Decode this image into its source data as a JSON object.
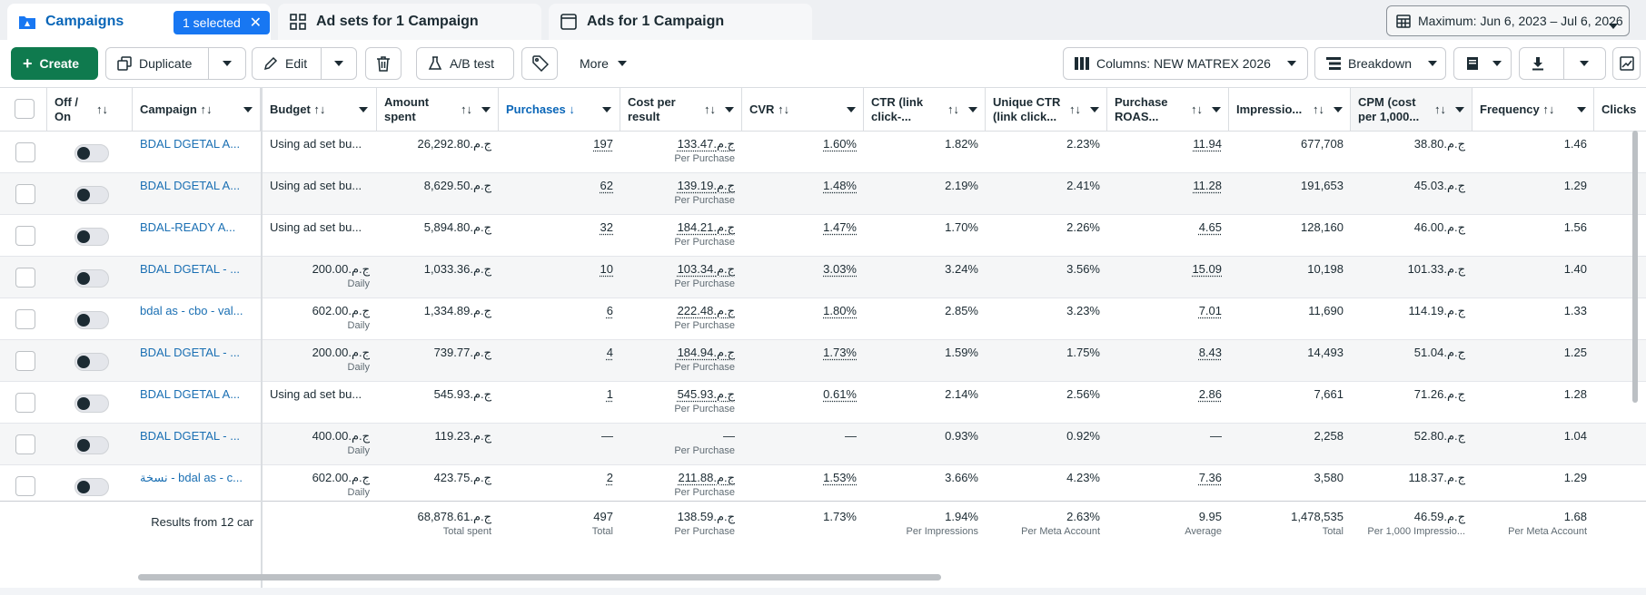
{
  "tabs": {
    "campaigns": "Campaigns",
    "selected_pill": "1 selected",
    "adsets": "Ad sets for 1 Campaign",
    "ads": "Ads for 1 Campaign"
  },
  "date_range": "Maximum: Jun 6, 2023 – Jul 6, 2026",
  "toolbar": {
    "create": "Create",
    "duplicate": "Duplicate",
    "edit": "Edit",
    "ab_test": "A/B test",
    "more": "More",
    "columns": "Columns: NEW MATREX 2026",
    "breakdown": "Breakdown"
  },
  "headers": {
    "off_on": [
      "Off /",
      "On"
    ],
    "campaign": "Campaign",
    "budget": "Budget",
    "amount_spent": [
      "Amount",
      "spent"
    ],
    "purchases": "Purchases",
    "cost_per_result": [
      "Cost per",
      "result"
    ],
    "cvr": "CVR",
    "ctr": [
      "CTR (link",
      "click-..."
    ],
    "unique_ctr": [
      "Unique CTR",
      "(link click..."
    ],
    "purchase_roas": [
      "Purchase",
      "ROAS..."
    ],
    "impressions": "Impressio...",
    "cpm": [
      "CPM (cost",
      "per 1,000..."
    ],
    "frequency": "Frequency",
    "clicks": "Clicks"
  },
  "rows": [
    {
      "campaign": "BDAL DGETAL A...",
      "budget": "Using ad set bu...",
      "budget_sub": "",
      "spent": "26,292.80.ج.م",
      "purchases": "197",
      "cpr": "133.47.ج.م",
      "cpr_sub": "Per Purchase",
      "cvr": "1.60%",
      "ctr": "1.82%",
      "uctr": "2.23%",
      "roas": "11.94",
      "impr": "677,708",
      "cpm": "38.80.ج.م",
      "freq": "1.46"
    },
    {
      "campaign": "BDAL DGETAL A...",
      "budget": "Using ad set bu...",
      "budget_sub": "",
      "spent": "8,629.50.ج.م",
      "purchases": "62",
      "cpr": "139.19.ج.م",
      "cpr_sub": "Per Purchase",
      "cvr": "1.48%",
      "ctr": "2.19%",
      "uctr": "2.41%",
      "roas": "11.28",
      "impr": "191,653",
      "cpm": "45.03.ج.م",
      "freq": "1.29"
    },
    {
      "campaign": "BDAL-READY A...",
      "budget": "Using ad set bu...",
      "budget_sub": "",
      "spent": "5,894.80.ج.م",
      "purchases": "32",
      "cpr": "184.21.ج.م",
      "cpr_sub": "Per Purchase",
      "cvr": "1.47%",
      "ctr": "1.70%",
      "uctr": "2.26%",
      "roas": "4.65",
      "impr": "128,160",
      "cpm": "46.00.ج.م",
      "freq": "1.56"
    },
    {
      "campaign": "BDAL DGETAL - ...",
      "budget": "200.00.ج.م",
      "budget_sub": "Daily",
      "spent": "1,033.36.ج.م",
      "purchases": "10",
      "cpr": "103.34.ج.م",
      "cpr_sub": "Per Purchase",
      "cvr": "3.03%",
      "ctr": "3.24%",
      "uctr": "3.56%",
      "roas": "15.09",
      "impr": "10,198",
      "cpm": "101.33.ج.م",
      "freq": "1.40"
    },
    {
      "campaign": "bdal as - cbo - val...",
      "budget": "602.00.ج.م",
      "budget_sub": "Daily",
      "spent": "1,334.89.ج.م",
      "purchases": "6",
      "cpr": "222.48.ج.م",
      "cpr_sub": "Per Purchase",
      "cvr": "1.80%",
      "ctr": "2.85%",
      "uctr": "3.23%",
      "roas": "7.01",
      "impr": "11,690",
      "cpm": "114.19.ج.م",
      "freq": "1.33"
    },
    {
      "campaign": "BDAL DGETAL - ...",
      "budget": "200.00.ج.م",
      "budget_sub": "Daily",
      "spent": "739.77.ج.م",
      "purchases": "4",
      "cpr": "184.94.ج.م",
      "cpr_sub": "Per Purchase",
      "cvr": "1.73%",
      "ctr": "1.59%",
      "uctr": "1.75%",
      "roas": "8.43",
      "impr": "14,493",
      "cpm": "51.04.ج.م",
      "freq": "1.25"
    },
    {
      "campaign": "BDAL DGETAL A...",
      "budget": "Using ad set bu...",
      "budget_sub": "",
      "spent": "545.93.ج.م",
      "purchases": "1",
      "cpr": "545.93.ج.م",
      "cpr_sub": "Per Purchase",
      "cvr": "0.61%",
      "ctr": "2.14%",
      "uctr": "2.56%",
      "roas": "2.86",
      "impr": "7,661",
      "cpm": "71.26.ج.م",
      "freq": "1.28"
    },
    {
      "campaign": "BDAL DGETAL - ...",
      "budget": "400.00.ج.م",
      "budget_sub": "Daily",
      "spent": "119.23.ج.م",
      "purchases": "—",
      "cpr": "—",
      "cpr_sub": "Per Purchase",
      "cvr": "—",
      "ctr": "0.93%",
      "uctr": "0.92%",
      "roas": "—",
      "impr": "2,258",
      "cpm": "52.80.ج.م",
      "freq": "1.04"
    },
    {
      "campaign": "نسخة - bdal as - c...",
      "budget": "602.00.ج.م",
      "budget_sub": "Daily",
      "spent": "423.75.ج.م",
      "purchases": "2",
      "cpr": "211.88.ج.م",
      "cpr_sub": "Per Purchase",
      "cvr": "1.53%",
      "ctr": "3.66%",
      "uctr": "4.23%",
      "roas": "7.36",
      "impr": "3,580",
      "cpm": "118.37.ج.م",
      "freq": "1.29"
    }
  ],
  "totals": {
    "label": "Results from 12 car",
    "spent": "68,878.61.ج.م",
    "spent_sub": "Total spent",
    "purchases": "497",
    "purchases_sub": "Total",
    "cpr": "138.59.ج.م",
    "cpr_sub": "Per Purchase",
    "cvr": "1.73%",
    "ctr": "1.94%",
    "ctr_sub": "Per Impressions",
    "uctr": "2.63%",
    "uctr_sub": "Per Meta Account",
    "roas": "9.95",
    "roas_sub": "Average",
    "impr": "1,478,535",
    "impr_sub": "Total",
    "cpm": "46.59.ج.م",
    "cpm_sub": "Per 1,000 Impressio...",
    "freq": "1.68",
    "freq_sub": "Per Meta Account"
  },
  "colors": {
    "accent": "#1877f2",
    "create_green": "#0f7a4e",
    "link": "#1a6fb3"
  }
}
